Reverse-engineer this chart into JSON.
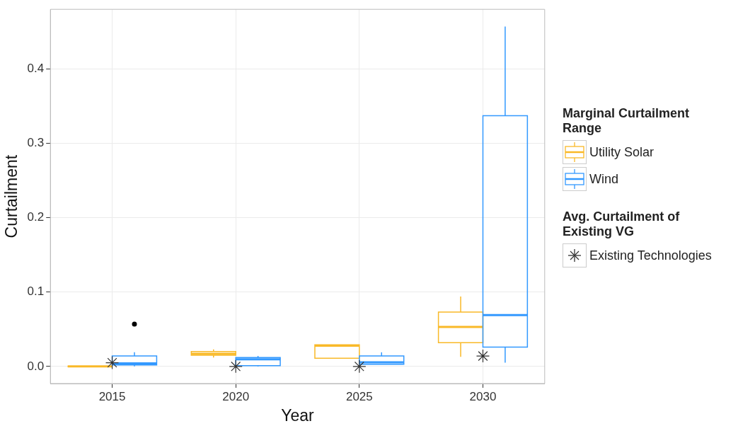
{
  "chart_data": {
    "type": "box",
    "xlabel": "Year",
    "ylabel": "Curtailment",
    "legend_title": "Marginal Curtailment Range",
    "categories": [
      "2015",
      "2020",
      "2025",
      "2030"
    ],
    "series": [
      {
        "name": "Utility Solar",
        "color": "#f9b928",
        "boxes": [
          {
            "low": 0,
            "q1": 0,
            "median": 0,
            "q3": 0,
            "high": 0
          },
          {
            "low": 0.012,
            "q1": 0.015,
            "median": 0.017,
            "q3": 0.02,
            "high": 0.023
          },
          {
            "low": 0.011,
            "q1": 0.011,
            "median": 0.028,
            "q3": 0.029,
            "high": 0.029
          },
          {
            "low": 0.013,
            "q1": 0.032,
            "median": 0.053,
            "q3": 0.073,
            "high": 0.094
          }
        ]
      },
      {
        "name": "Wind",
        "color": "#3399ff",
        "boxes": [
          {
            "low": 0,
            "q1": 0.002,
            "median": 0.004,
            "q3": 0.014,
            "high": 0.019,
            "outliers": [
              0.057
            ]
          },
          {
            "low": 0,
            "q1": 0.001,
            "median": 0.0095,
            "q3": 0.012,
            "high": 0.014
          },
          {
            "low": 0.003,
            "q1": 0.003,
            "median": 0.0055,
            "q3": 0.014,
            "high": 0.019
          },
          {
            "low": 0.005,
            "q1": 0.026,
            "median": 0.069,
            "q3": 0.337,
            "high": 0.457
          }
        ]
      },
      {
        "name": "Existing Technologies",
        "type": "scatter",
        "color": "#333333",
        "marker": "cross",
        "values": [
          0.005,
          0,
          0,
          0.014
        ]
      }
    ],
    "annotations": [
      "Avg. Curtailment of Existing VG"
    ],
    "ylim": [
      -0.023,
      0.48
    ],
    "yticks": [
      {
        "value": 0,
        "label": "0.0"
      },
      0.1,
      0.2,
      0.3,
      0.4
    ],
    "grid": true,
    "legend": "right"
  }
}
